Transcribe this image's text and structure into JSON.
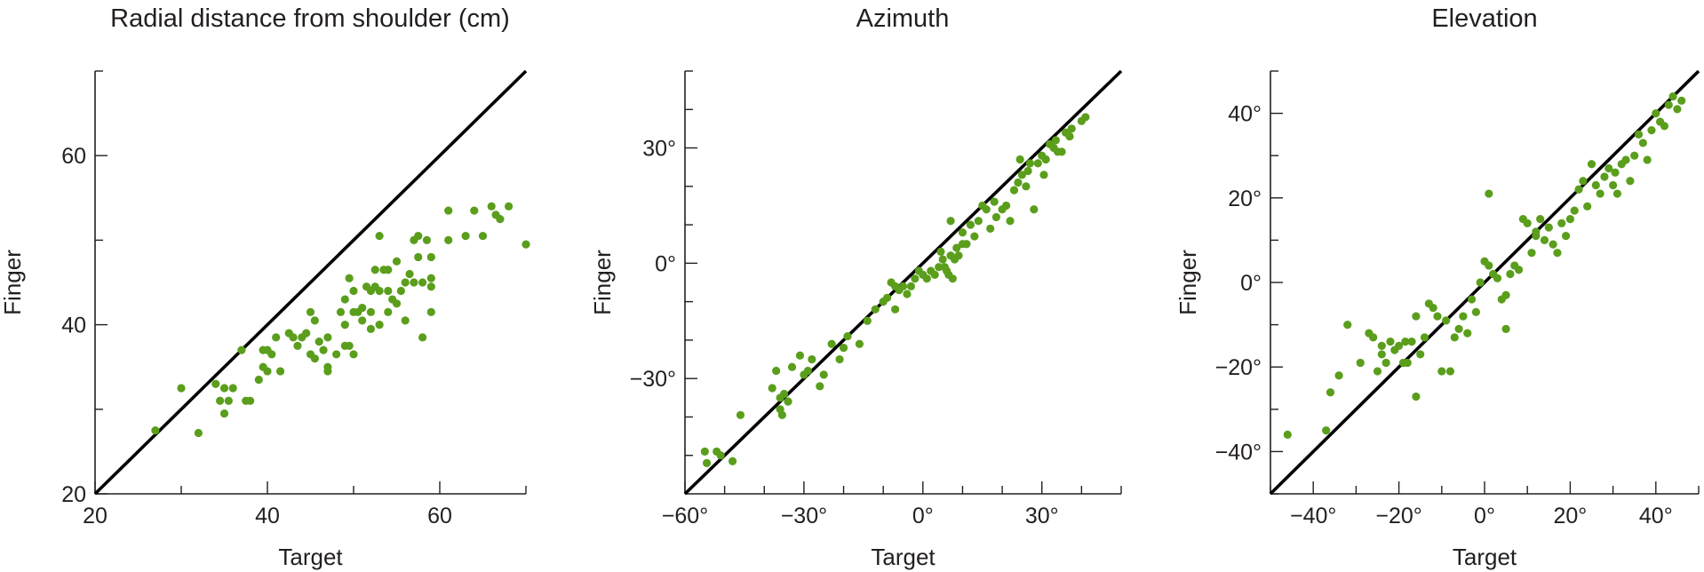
{
  "colors": {
    "points": "#5a9e1c",
    "line": "#000000",
    "axes": "#231f20"
  },
  "chart_data": [
    {
      "type": "scatter",
      "title": "Radial distance from shoulder (cm)",
      "xlabel": "Target",
      "ylabel": "Finger",
      "xlim": [
        20,
        70
      ],
      "ylim": [
        20,
        70
      ],
      "major_ticks_x": [
        20,
        40,
        60
      ],
      "major_ticks_y": [
        20,
        40,
        60
      ],
      "minor_ticks_x": [
        30,
        50,
        70
      ],
      "minor_ticks_y": [
        30,
        50,
        70
      ],
      "tick_labels_x": [
        "20",
        "40",
        "60"
      ],
      "tick_labels_y": [
        "20",
        "40",
        "60"
      ],
      "reference_line": "y = x",
      "points": [
        [
          27,
          27.5
        ],
        [
          30,
          32.5
        ],
        [
          32,
          27.2
        ],
        [
          34,
          33
        ],
        [
          34.5,
          31
        ],
        [
          35,
          32.5
        ],
        [
          35,
          29.5
        ],
        [
          35.5,
          31
        ],
        [
          36,
          32.5
        ],
        [
          37,
          37
        ],
        [
          37.5,
          31
        ],
        [
          38,
          31
        ],
        [
          39,
          33.5
        ],
        [
          39.5,
          37
        ],
        [
          39.5,
          35
        ],
        [
          40,
          34.5
        ],
        [
          40,
          37
        ],
        [
          40.5,
          36.5
        ],
        [
          41,
          38.5
        ],
        [
          41.5,
          34.5
        ],
        [
          42.5,
          39
        ],
        [
          43,
          38.5
        ],
        [
          43.5,
          37.5
        ],
        [
          44,
          38.5
        ],
        [
          44.5,
          39
        ],
        [
          45,
          36.5
        ],
        [
          45,
          41.5
        ],
        [
          45.5,
          40.5
        ],
        [
          45.5,
          36
        ],
        [
          46,
          38
        ],
        [
          46.5,
          37
        ],
        [
          47,
          34.5
        ],
        [
          47,
          38.5
        ],
        [
          47,
          35
        ],
        [
          48,
          36.5
        ],
        [
          48.5,
          41.5
        ],
        [
          49,
          40
        ],
        [
          49,
          43
        ],
        [
          49,
          37.5
        ],
        [
          49.5,
          45.5
        ],
        [
          49.5,
          37.5
        ],
        [
          50,
          41.5
        ],
        [
          50,
          44
        ],
        [
          50,
          36.5
        ],
        [
          50.5,
          41.5
        ],
        [
          51,
          40.5
        ],
        [
          51,
          42
        ],
        [
          51.5,
          44.5
        ],
        [
          52,
          41.5
        ],
        [
          52,
          44
        ],
        [
          52,
          39.5
        ],
        [
          52.5,
          46.5
        ],
        [
          52.5,
          44.5
        ],
        [
          53,
          40
        ],
        [
          53,
          44
        ],
        [
          53,
          50.5
        ],
        [
          53.5,
          46.5
        ],
        [
          54,
          41.5
        ],
        [
          54,
          44
        ],
        [
          54,
          46.5
        ],
        [
          54.5,
          43
        ],
        [
          55,
          47.5
        ],
        [
          55,
          42.5
        ],
        [
          55.5,
          44
        ],
        [
          56,
          45
        ],
        [
          56,
          40.5
        ],
        [
          56.5,
          46
        ],
        [
          57,
          45
        ],
        [
          57,
          50
        ],
        [
          57.5,
          48
        ],
        [
          57.5,
          50.5
        ],
        [
          58,
          38.5
        ],
        [
          58,
          45
        ],
        [
          58.5,
          50
        ],
        [
          59,
          45.5
        ],
        [
          59,
          44.5
        ],
        [
          59,
          48
        ],
        [
          59,
          41.5
        ],
        [
          61,
          50
        ],
        [
          61,
          53.5
        ],
        [
          63,
          50.5
        ],
        [
          64,
          53.5
        ],
        [
          65,
          50.5
        ],
        [
          66,
          54
        ],
        [
          66.5,
          53
        ],
        [
          67,
          52.5
        ],
        [
          68,
          54
        ],
        [
          70,
          49.5
        ]
      ]
    },
    {
      "type": "scatter",
      "title": "Azimuth",
      "xlabel": "Target",
      "ylabel": "Finger",
      "xlim": [
        -60,
        50
      ],
      "ylim": [
        -60,
        50
      ],
      "major_ticks_x": [
        -60,
        -30,
        0,
        30
      ],
      "major_ticks_y": [
        -30,
        0,
        30
      ],
      "minor_ticks_x": [
        -50,
        -40,
        -20,
        -10,
        10,
        20,
        40,
        50
      ],
      "minor_ticks_y": [
        -50,
        -40,
        -20,
        -10,
        10,
        20,
        40,
        50
      ],
      "tick_labels_x": [
        "−60°",
        "−30°",
        "0°",
        "30°"
      ],
      "tick_labels_y": [
        "−30°",
        "0°",
        "30°"
      ],
      "reference_line": "y = x",
      "points": [
        [
          -55,
          -49
        ],
        [
          -54.5,
          -52
        ],
        [
          -52,
          -49
        ],
        [
          -51,
          -50
        ],
        [
          -48,
          -51.5
        ],
        [
          -46,
          -39.5
        ],
        [
          -38,
          -32.5
        ],
        [
          -37,
          -28
        ],
        [
          -36,
          -38
        ],
        [
          -36,
          -35
        ],
        [
          -35.5,
          -39.5
        ],
        [
          -35,
          -34
        ],
        [
          -34,
          -36
        ],
        [
          -33,
          -27
        ],
        [
          -31,
          -24
        ],
        [
          -30,
          -29
        ],
        [
          -29,
          -28
        ],
        [
          -28,
          -25
        ],
        [
          -26,
          -32
        ],
        [
          -25,
          -29
        ],
        [
          -23,
          -21
        ],
        [
          -21,
          -25
        ],
        [
          -20,
          -22
        ],
        [
          -19,
          -19
        ],
        [
          -16,
          -21
        ],
        [
          -14,
          -15
        ],
        [
          -12,
          -12
        ],
        [
          -10,
          -10
        ],
        [
          -9,
          -9
        ],
        [
          -8,
          -5
        ],
        [
          -7,
          -12
        ],
        [
          -7,
          -6
        ],
        [
          -6,
          -7
        ],
        [
          -5,
          -6
        ],
        [
          -4,
          -8
        ],
        [
          -3,
          -6
        ],
        [
          -2,
          -4
        ],
        [
          -1,
          -2
        ],
        [
          0,
          -3
        ],
        [
          1,
          -4
        ],
        [
          2,
          -2
        ],
        [
          3,
          -3
        ],
        [
          4,
          -1
        ],
        [
          4.5,
          3
        ],
        [
          5,
          1
        ],
        [
          5.5,
          -1
        ],
        [
          6,
          -2
        ],
        [
          6.5,
          -3
        ],
        [
          7,
          2
        ],
        [
          7,
          11
        ],
        [
          7.5,
          -4
        ],
        [
          8,
          1
        ],
        [
          8.5,
          4
        ],
        [
          9,
          2
        ],
        [
          10,
          5
        ],
        [
          10,
          8
        ],
        [
          11,
          5
        ],
        [
          12,
          10
        ],
        [
          13,
          7
        ],
        [
          14,
          11
        ],
        [
          15,
          15
        ],
        [
          16,
          14
        ],
        [
          17,
          9
        ],
        [
          18,
          16
        ],
        [
          18.5,
          12
        ],
        [
          20,
          14
        ],
        [
          21,
          15
        ],
        [
          22,
          11
        ],
        [
          23,
          19
        ],
        [
          24,
          21
        ],
        [
          24.5,
          27
        ],
        [
          25,
          23
        ],
        [
          26,
          20
        ],
        [
          26.5,
          24
        ],
        [
          27,
          26
        ],
        [
          28,
          14
        ],
        [
          29,
          26
        ],
        [
          30,
          28
        ],
        [
          30.5,
          23
        ],
        [
          31,
          27
        ],
        [
          32,
          31
        ],
        [
          33,
          30
        ],
        [
          33.5,
          32
        ],
        [
          34,
          29
        ],
        [
          35,
          29
        ],
        [
          36,
          34
        ],
        [
          37,
          33
        ],
        [
          37.5,
          35
        ],
        [
          40,
          37
        ],
        [
          41,
          38
        ]
      ]
    },
    {
      "type": "scatter",
      "title": "Elevation",
      "xlabel": "Target",
      "ylabel": "Finger",
      "xlim": [
        -50,
        50
      ],
      "ylim": [
        -50,
        50
      ],
      "major_ticks_x": [
        -40,
        -20,
        0,
        20,
        40
      ],
      "major_ticks_y": [
        -40,
        -20,
        0,
        20,
        40
      ],
      "minor_ticks_x": [
        -50,
        -30,
        -10,
        10,
        30,
        50
      ],
      "minor_ticks_y": [
        -50,
        -30,
        -10,
        10,
        30,
        50
      ],
      "tick_labels_x": [
        "−40°",
        "−20°",
        "0°",
        "20°",
        "40°"
      ],
      "tick_labels_y": [
        "−40°",
        "−20°",
        "0°",
        "20°",
        "40°"
      ],
      "reference_line": "y = x",
      "points": [
        [
          -46,
          -36
        ],
        [
          -37,
          -35
        ],
        [
          -36,
          -26
        ],
        [
          -34,
          -22
        ],
        [
          -32,
          -10
        ],
        [
          -29,
          -19
        ],
        [
          -27,
          -12
        ],
        [
          -26,
          -13
        ],
        [
          -25,
          -21
        ],
        [
          -24,
          -17
        ],
        [
          -24,
          -15
        ],
        [
          -23,
          -19
        ],
        [
          -22,
          -14
        ],
        [
          -21,
          -16
        ],
        [
          -20,
          -15
        ],
        [
          -19,
          -19
        ],
        [
          -18.5,
          -14
        ],
        [
          -18,
          -19
        ],
        [
          -17,
          -14
        ],
        [
          -16,
          -27
        ],
        [
          -16,
          -8
        ],
        [
          -15,
          -17
        ],
        [
          -14,
          -13
        ],
        [
          -13,
          -5
        ],
        [
          -12,
          -6
        ],
        [
          -11,
          -8
        ],
        [
          -10,
          -21
        ],
        [
          -9,
          -9
        ],
        [
          -8,
          -21
        ],
        [
          -7,
          -13
        ],
        [
          -6,
          -11
        ],
        [
          -5,
          -8
        ],
        [
          -4,
          -12
        ],
        [
          -3,
          -4
        ],
        [
          -2,
          -7
        ],
        [
          -1,
          0
        ],
        [
          0,
          5
        ],
        [
          1,
          4
        ],
        [
          1,
          21
        ],
        [
          2,
          2
        ],
        [
          3,
          1
        ],
        [
          4,
          -4
        ],
        [
          5,
          -3
        ],
        [
          5,
          -11
        ],
        [
          6,
          2
        ],
        [
          7,
          4
        ],
        [
          8,
          3
        ],
        [
          9,
          15
        ],
        [
          10,
          14
        ],
        [
          11,
          7
        ],
        [
          12,
          12
        ],
        [
          12,
          11
        ],
        [
          13,
          15
        ],
        [
          14,
          10
        ],
        [
          15,
          13
        ],
        [
          16,
          9
        ],
        [
          17,
          7
        ],
        [
          18,
          14
        ],
        [
          19,
          11
        ],
        [
          20,
          15
        ],
        [
          21,
          17
        ],
        [
          22,
          22
        ],
        [
          23,
          24
        ],
        [
          24,
          18
        ],
        [
          25,
          28
        ],
        [
          26,
          23
        ],
        [
          27,
          21
        ],
        [
          28,
          25
        ],
        [
          29,
          27
        ],
        [
          30,
          23
        ],
        [
          30.5,
          26
        ],
        [
          31,
          21
        ],
        [
          32,
          28
        ],
        [
          33,
          29
        ],
        [
          34,
          24
        ],
        [
          35,
          30
        ],
        [
          36,
          35
        ],
        [
          37,
          33
        ],
        [
          38,
          29
        ],
        [
          39,
          36
        ],
        [
          40,
          40
        ],
        [
          41,
          38
        ],
        [
          42,
          37
        ],
        [
          43,
          42
        ],
        [
          44,
          44
        ],
        [
          45,
          41
        ],
        [
          46,
          43
        ]
      ]
    }
  ]
}
